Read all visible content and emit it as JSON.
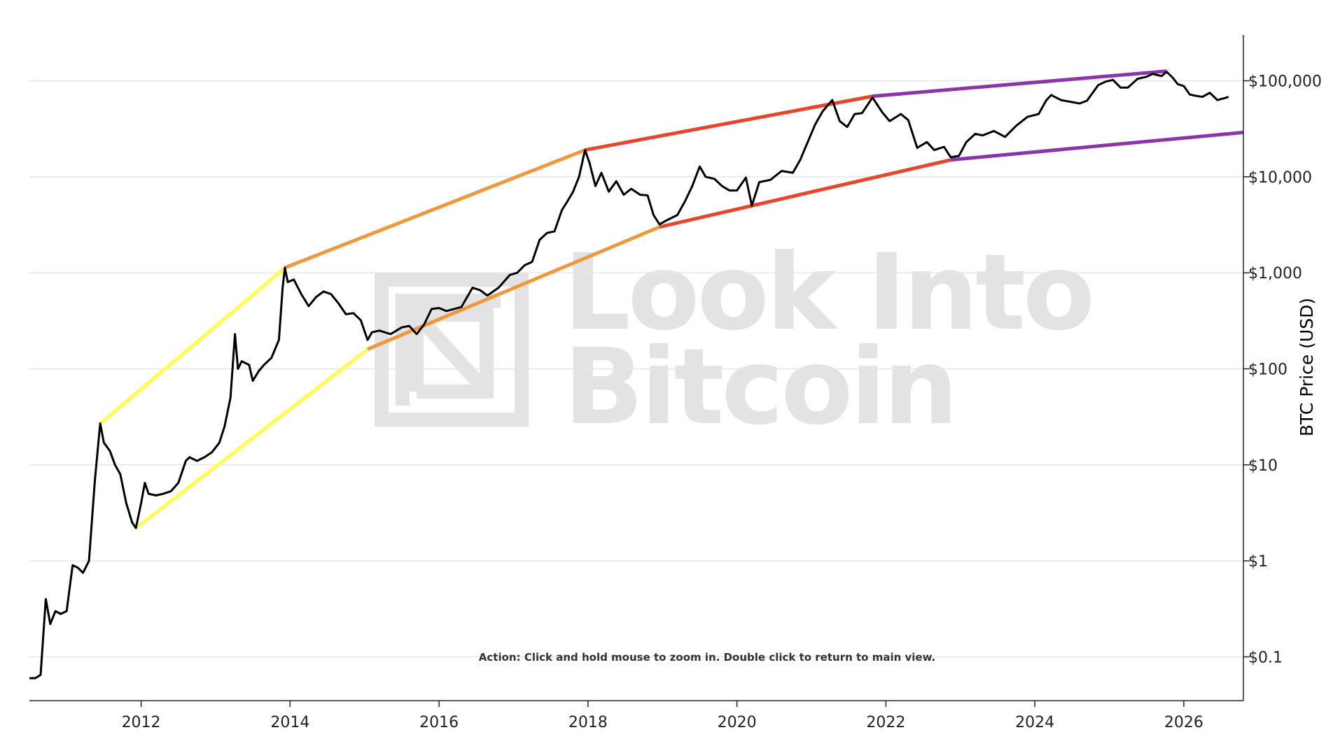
{
  "chart_data": {
    "type": "line",
    "title": "",
    "xlabel": "",
    "ylabel": "BTC Price (USD)",
    "y_scale": "log",
    "xlim": [
      2010.5,
      2026.8
    ],
    "ylim": [
      0.035,
      300000
    ],
    "grid": true,
    "watermark": [
      "Look Into",
      "Bitcoin"
    ],
    "action_note": "Action: Click and hold mouse to zoom in.  Double click to return to main view.",
    "x_ticks": [
      {
        "value": 2012,
        "label": "2012"
      },
      {
        "value": 2014,
        "label": "2014"
      },
      {
        "value": 2016,
        "label": "2016"
      },
      {
        "value": 2018,
        "label": "2018"
      },
      {
        "value": 2020,
        "label": "2020"
      },
      {
        "value": 2022,
        "label": "2022"
      },
      {
        "value": 2024,
        "label": "2024"
      },
      {
        "value": 2026,
        "label": "2026"
      }
    ],
    "y_ticks": [
      {
        "value": 0.1,
        "label": "$0.1"
      },
      {
        "value": 1,
        "label": "$1"
      },
      {
        "value": 10,
        "label": "$10"
      },
      {
        "value": 100,
        "label": "$100"
      },
      {
        "value": 1000,
        "label": "$1,000"
      },
      {
        "value": 10000,
        "label": "$10,000"
      },
      {
        "value": 100000,
        "label": "$100,000"
      }
    ],
    "price_series": {
      "color": "#000000",
      "points": [
        [
          2010.5,
          0.06
        ],
        [
          2010.58,
          0.06
        ],
        [
          2010.65,
          0.065
        ],
        [
          2010.72,
          0.4
        ],
        [
          2010.78,
          0.22
        ],
        [
          2010.85,
          0.3
        ],
        [
          2010.92,
          0.28
        ],
        [
          2011.0,
          0.3
        ],
        [
          2011.08,
          0.9
        ],
        [
          2011.15,
          0.85
        ],
        [
          2011.22,
          0.75
        ],
        [
          2011.3,
          1.0
        ],
        [
          2011.38,
          7.0
        ],
        [
          2011.45,
          27.0
        ],
        [
          2011.5,
          17.0
        ],
        [
          2011.58,
          14.0
        ],
        [
          2011.65,
          10.0
        ],
        [
          2011.72,
          8.0
        ],
        [
          2011.8,
          4.0
        ],
        [
          2011.88,
          2.5
        ],
        [
          2011.93,
          2.2
        ],
        [
          2012.0,
          4.0
        ],
        [
          2012.05,
          6.5
        ],
        [
          2012.1,
          5.0
        ],
        [
          2012.2,
          4.8
        ],
        [
          2012.3,
          5.0
        ],
        [
          2012.4,
          5.3
        ],
        [
          2012.5,
          6.5
        ],
        [
          2012.6,
          11.0
        ],
        [
          2012.65,
          12.0
        ],
        [
          2012.75,
          11.0
        ],
        [
          2012.85,
          12.0
        ],
        [
          2012.95,
          13.5
        ],
        [
          2013.05,
          17.0
        ],
        [
          2013.12,
          25.0
        ],
        [
          2013.2,
          50.0
        ],
        [
          2013.26,
          230.0
        ],
        [
          2013.3,
          100.0
        ],
        [
          2013.35,
          120.0
        ],
        [
          2013.45,
          110.0
        ],
        [
          2013.5,
          75.0
        ],
        [
          2013.58,
          95.0
        ],
        [
          2013.65,
          110.0
        ],
        [
          2013.75,
          130.0
        ],
        [
          2013.85,
          200.0
        ],
        [
          2013.9,
          700.0
        ],
        [
          2013.93,
          1130.0
        ],
        [
          2013.97,
          800.0
        ],
        [
          2014.05,
          850.0
        ],
        [
          2014.15,
          600.0
        ],
        [
          2014.25,
          450.0
        ],
        [
          2014.35,
          560.0
        ],
        [
          2014.45,
          640.0
        ],
        [
          2014.55,
          600.0
        ],
        [
          2014.65,
          480.0
        ],
        [
          2014.75,
          370.0
        ],
        [
          2014.85,
          380.0
        ],
        [
          2014.95,
          320.0
        ],
        [
          2015.04,
          200.0
        ],
        [
          2015.1,
          240.0
        ],
        [
          2015.2,
          250.0
        ],
        [
          2015.35,
          230.0
        ],
        [
          2015.5,
          270.0
        ],
        [
          2015.6,
          280.0
        ],
        [
          2015.7,
          230.0
        ],
        [
          2015.8,
          290.0
        ],
        [
          2015.9,
          420.0
        ],
        [
          2016.0,
          430.0
        ],
        [
          2016.1,
          400.0
        ],
        [
          2016.2,
          420.0
        ],
        [
          2016.3,
          440.0
        ],
        [
          2016.45,
          700.0
        ],
        [
          2016.55,
          660.0
        ],
        [
          2016.65,
          580.0
        ],
        [
          2016.8,
          700.0
        ],
        [
          2016.95,
          950.0
        ],
        [
          2017.05,
          1000.0
        ],
        [
          2017.15,
          1200.0
        ],
        [
          2017.25,
          1300.0
        ],
        [
          2017.35,
          2200.0
        ],
        [
          2017.45,
          2600.0
        ],
        [
          2017.55,
          2700.0
        ],
        [
          2017.65,
          4500.0
        ],
        [
          2017.72,
          5500.0
        ],
        [
          2017.8,
          7000.0
        ],
        [
          2017.88,
          10000.0
        ],
        [
          2017.96,
          19000.0
        ],
        [
          2018.02,
          14000.0
        ],
        [
          2018.1,
          8000.0
        ],
        [
          2018.18,
          11000.0
        ],
        [
          2018.28,
          7000.0
        ],
        [
          2018.38,
          9000.0
        ],
        [
          2018.48,
          6500.0
        ],
        [
          2018.58,
          7500.0
        ],
        [
          2018.7,
          6500.0
        ],
        [
          2018.8,
          6400.0
        ],
        [
          2018.88,
          4000.0
        ],
        [
          2018.96,
          3200.0
        ],
        [
          2019.05,
          3500.0
        ],
        [
          2019.2,
          4000.0
        ],
        [
          2019.3,
          5500.0
        ],
        [
          2019.4,
          8000.0
        ],
        [
          2019.5,
          12800.0
        ],
        [
          2019.58,
          10000.0
        ],
        [
          2019.7,
          9500.0
        ],
        [
          2019.8,
          8000.0
        ],
        [
          2019.9,
          7200.0
        ],
        [
          2020.0,
          7200.0
        ],
        [
          2020.12,
          9800.0
        ],
        [
          2020.2,
          5000.0
        ],
        [
          2020.3,
          8800.0
        ],
        [
          2020.45,
          9300.0
        ],
        [
          2020.6,
          11500.0
        ],
        [
          2020.75,
          11000.0
        ],
        [
          2020.85,
          15000.0
        ],
        [
          2020.95,
          23000.0
        ],
        [
          2021.05,
          35000.0
        ],
        [
          2021.15,
          48000.0
        ],
        [
          2021.28,
          63000.0
        ],
        [
          2021.38,
          38000.0
        ],
        [
          2021.48,
          33000.0
        ],
        [
          2021.58,
          45000.0
        ],
        [
          2021.68,
          46000.0
        ],
        [
          2021.82,
          67000.0
        ],
        [
          2021.95,
          47000.0
        ],
        [
          2022.05,
          38000.0
        ],
        [
          2022.2,
          45000.0
        ],
        [
          2022.3,
          39000.0
        ],
        [
          2022.42,
          20000.0
        ],
        [
          2022.55,
          23000.0
        ],
        [
          2022.65,
          19000.0
        ],
        [
          2022.78,
          20500.0
        ],
        [
          2022.87,
          16000.0
        ],
        [
          2022.98,
          16500.0
        ],
        [
          2023.08,
          23000.0
        ],
        [
          2023.2,
          28000.0
        ],
        [
          2023.3,
          27000.0
        ],
        [
          2023.45,
          30000.0
        ],
        [
          2023.6,
          26000.0
        ],
        [
          2023.75,
          34000.0
        ],
        [
          2023.9,
          42000.0
        ],
        [
          2024.05,
          45000.0
        ],
        [
          2024.15,
          62000.0
        ],
        [
          2024.22,
          71000.0
        ],
        [
          2024.35,
          63000.0
        ],
        [
          2024.5,
          60000.0
        ],
        [
          2024.6,
          58000.0
        ],
        [
          2024.7,
          62000.0
        ],
        [
          2024.85,
          90000.0
        ],
        [
          2024.95,
          98000.0
        ],
        [
          2025.05,
          102000.0
        ],
        [
          2025.15,
          85000.0
        ],
        [
          2025.25,
          85000.0
        ],
        [
          2025.38,
          105000.0
        ],
        [
          2025.5,
          110000.0
        ],
        [
          2025.58,
          118000.0
        ],
        [
          2025.7,
          112000.0
        ],
        [
          2025.77,
          124000.0
        ],
        [
          2025.85,
          108000.0
        ],
        [
          2025.92,
          92000.0
        ],
        [
          2026.0,
          88000.0
        ],
        [
          2026.08,
          72000.0
        ],
        [
          2026.15,
          70000.0
        ],
        [
          2026.25,
          68000.0
        ],
        [
          2026.35,
          75000.0
        ],
        [
          2026.45,
          63000.0
        ],
        [
          2026.55,
          66000.0
        ],
        [
          2026.6,
          68000.0
        ]
      ]
    },
    "trend_lines": [
      {
        "color": "#ffff4d",
        "points": [
          [
            2011.45,
            27
          ],
          [
            2013.93,
            1130
          ]
        ]
      },
      {
        "color": "#ffff4d",
        "points": [
          [
            2011.93,
            2.2
          ],
          [
            2015.04,
            160
          ]
        ]
      },
      {
        "color": "#f0993a",
        "points": [
          [
            2013.93,
            1130
          ],
          [
            2017.96,
            19000
          ]
        ]
      },
      {
        "color": "#f0993a",
        "points": [
          [
            2015.04,
            160
          ],
          [
            2018.96,
            3000
          ]
        ]
      },
      {
        "color": "#e8452c",
        "points": [
          [
            2017.96,
            19000
          ],
          [
            2021.82,
            69000
          ]
        ]
      },
      {
        "color": "#e8452c",
        "points": [
          [
            2018.96,
            3000
          ],
          [
            2022.87,
            15000
          ]
        ]
      },
      {
        "color": "#8b35a8",
        "points": [
          [
            2021.82,
            69000
          ],
          [
            2025.77,
            126000
          ]
        ]
      },
      {
        "color": "#8b35a8",
        "points": [
          [
            2022.87,
            15000
          ],
          [
            2026.8,
            29000
          ]
        ]
      }
    ]
  }
}
